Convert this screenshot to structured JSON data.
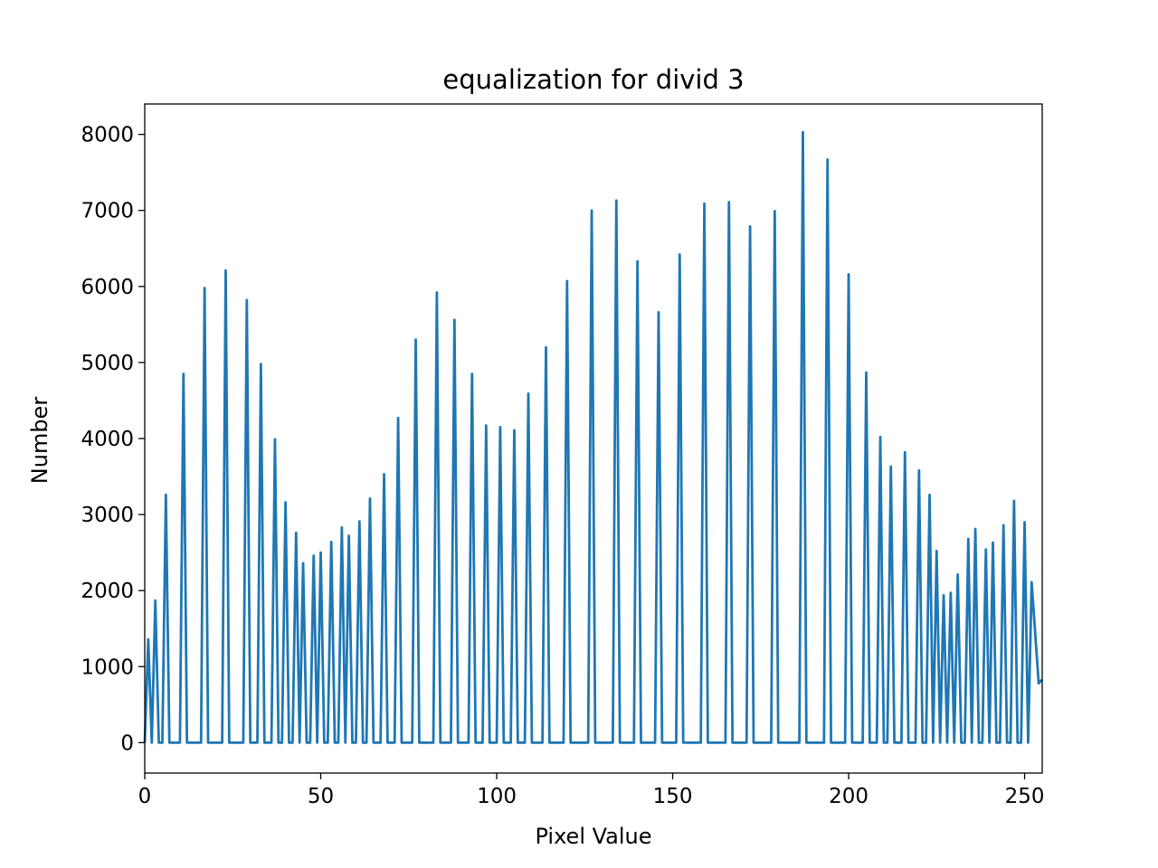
{
  "chart_data": {
    "type": "line",
    "title": "equalization for divid 3",
    "xlabel": "Pixel Value",
    "ylabel": "Number",
    "xlim": [
      0,
      255
    ],
    "ylim": [
      -400,
      8400
    ],
    "xticks": [
      0,
      50,
      100,
      150,
      200,
      250
    ],
    "yticks": [
      0,
      1000,
      2000,
      3000,
      4000,
      5000,
      6000,
      7000,
      8000
    ],
    "xtick_labels": [
      "0",
      "50",
      "100",
      "150",
      "200",
      "250"
    ],
    "ytick_labels": [
      "0",
      "1000",
      "2000",
      "3000",
      "4000",
      "5000",
      "6000",
      "7000",
      "8000"
    ],
    "grid": false,
    "legend": "none",
    "series": [
      {
        "color": "#1f77b4",
        "peaks": [
          [
            1,
            1360
          ],
          [
            3,
            1870
          ],
          [
            6,
            3260
          ],
          [
            11,
            4850
          ],
          [
            17,
            5980
          ],
          [
            23,
            6210
          ],
          [
            29,
            5820
          ],
          [
            33,
            4980
          ],
          [
            37,
            3990
          ],
          [
            40,
            3160
          ],
          [
            43,
            2760
          ],
          [
            45,
            2360
          ],
          [
            48,
            2460
          ],
          [
            50,
            2500
          ],
          [
            53,
            2640
          ],
          [
            56,
            2830
          ],
          [
            58,
            2720
          ],
          [
            61,
            2910
          ],
          [
            64,
            3210
          ],
          [
            68,
            3530
          ],
          [
            72,
            4270
          ],
          [
            77,
            5300
          ],
          [
            83,
            5920
          ],
          [
            88,
            5560
          ],
          [
            93,
            4850
          ],
          [
            97,
            4170
          ],
          [
            101,
            4150
          ],
          [
            105,
            4110
          ],
          [
            109,
            4590
          ],
          [
            114,
            5200
          ],
          [
            120,
            6070
          ],
          [
            127,
            7000
          ],
          [
            134,
            7130
          ],
          [
            140,
            6330
          ],
          [
            146,
            5660
          ],
          [
            152,
            6420
          ],
          [
            159,
            7090
          ],
          [
            166,
            7110
          ],
          [
            172,
            6790
          ],
          [
            179,
            6990
          ],
          [
            187,
            8030
          ],
          [
            194,
            7670
          ],
          [
            200,
            6160
          ],
          [
            205,
            4870
          ],
          [
            209,
            4020
          ],
          [
            212,
            3630
          ],
          [
            216,
            3820
          ],
          [
            220,
            3580
          ],
          [
            223,
            3260
          ],
          [
            225,
            2520
          ],
          [
            227,
            1940
          ],
          [
            229,
            1970
          ],
          [
            231,
            2210
          ],
          [
            234,
            2680
          ],
          [
            236,
            2810
          ],
          [
            239,
            2540
          ],
          [
            241,
            2630
          ],
          [
            244,
            2860
          ],
          [
            247,
            3180
          ],
          [
            250,
            2900
          ],
          [
            252,
            2110
          ],
          [
            254,
            780
          ],
          [
            255,
            830
          ]
        ],
        "baseline": 0
      }
    ]
  }
}
